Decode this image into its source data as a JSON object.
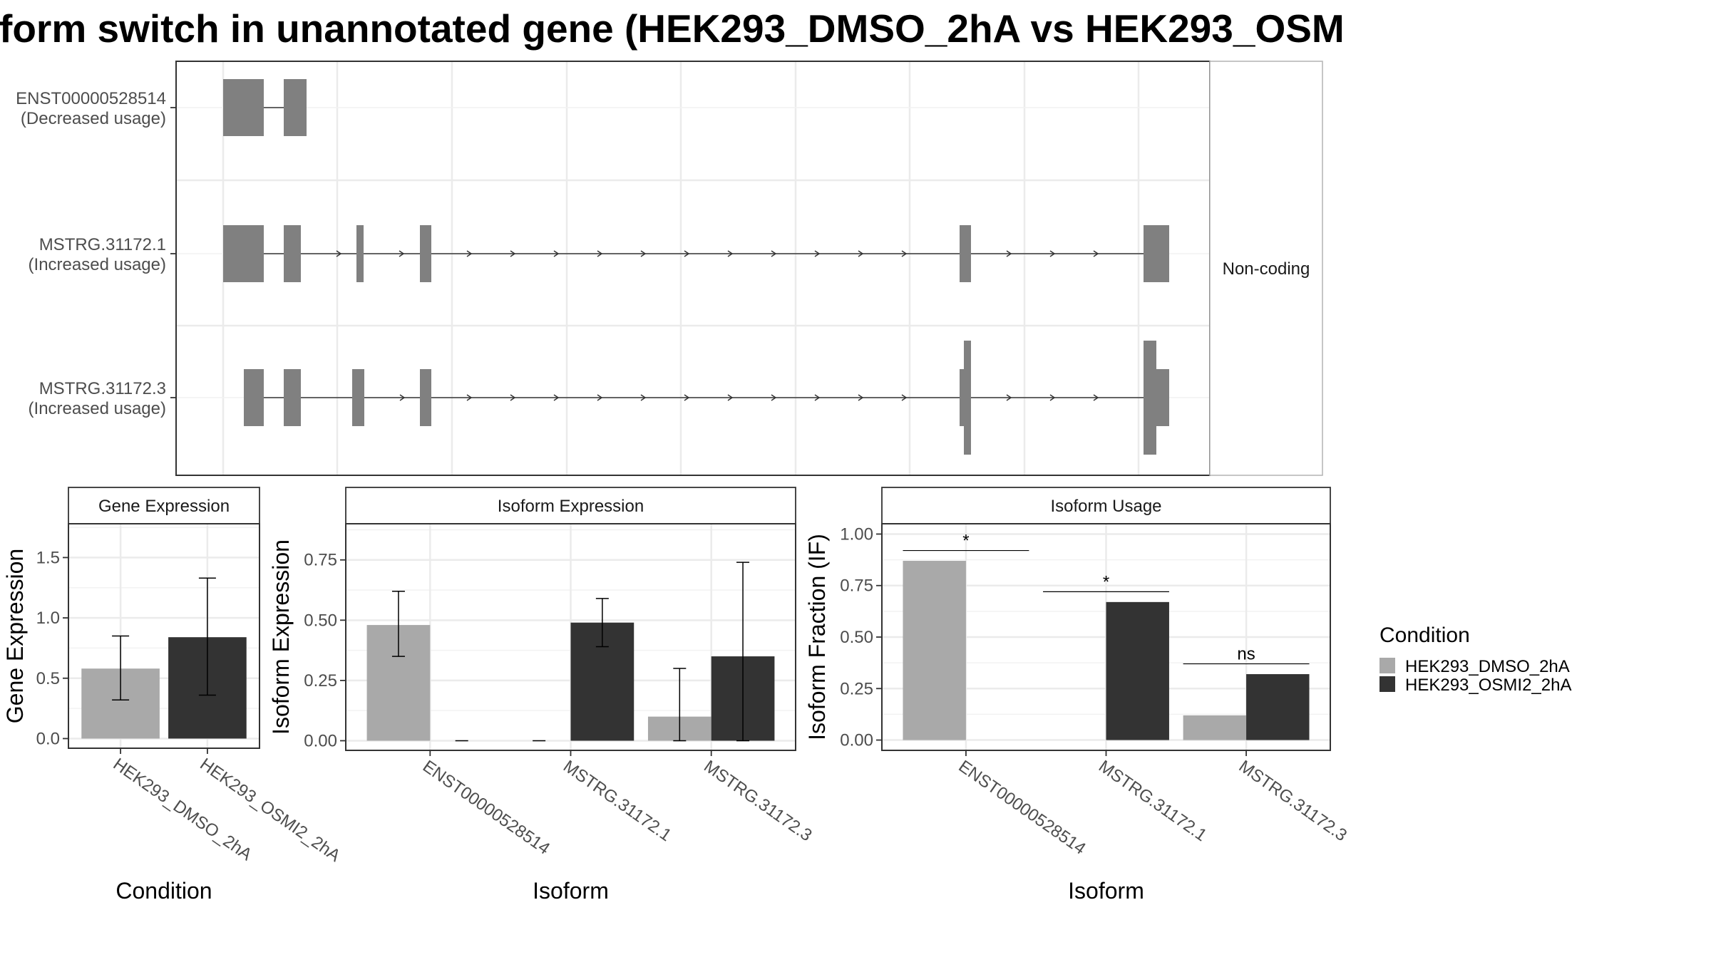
{
  "title": "form switch in unannotated gene (HEK293_DMSO_2hA vs HEK293_OSM",
  "colors": {
    "dmso": "#a9a9a9",
    "osmi": "#333333",
    "exon": "#808080"
  },
  "chart_data": [
    {
      "type": "transcript-structure",
      "transcripts": [
        {
          "id": "ENST00000528514",
          "label": "ENST00000528514",
          "sublabel": "(Decreased usage)"
        },
        {
          "id": "MSTRG.31172.1",
          "label": "MSTRG.31172.1",
          "sublabel": "(Increased usage)"
        },
        {
          "id": "MSTRG.31172.3",
          "label": "MSTRG.31172.3",
          "sublabel": "(Increased usage)"
        }
      ],
      "facet_label": "Non-coding"
    },
    {
      "type": "bar",
      "strip": "Gene Expression",
      "xlabel": "Condition",
      "ylabel": "Gene Expression",
      "ylim": [
        -0.08,
        1.78
      ],
      "yticks": [
        "0.0",
        "0.5",
        "1.0",
        "1.5"
      ],
      "categories": [
        "HEK293_DMSO_2hA",
        "HEK293_OSMI2_2hA"
      ],
      "values": [
        0.58,
        0.84
      ],
      "err_low": [
        0.32,
        0.36
      ],
      "err_high": [
        0.85,
        1.33
      ]
    },
    {
      "type": "bar",
      "strip": "Isoform Expression",
      "xlabel": "Isoform",
      "ylabel": "Isoform Expression",
      "ylim": [
        -0.04,
        0.9
      ],
      "yticks": [
        "0.00",
        "0.25",
        "0.50",
        "0.75"
      ],
      "categories": [
        "ENST00000528514",
        "MSTRG.31172.1",
        "MSTRG.31172.3"
      ],
      "series": [
        {
          "name": "HEK293_DMSO_2hA",
          "values": [
            0.48,
            0,
            0.1
          ],
          "err_low": [
            0.35,
            0,
            0
          ],
          "err_high": [
            0.62,
            0,
            0.3
          ]
        },
        {
          "name": "HEK293_OSMI2_2hA",
          "values": [
            0,
            0.49,
            0.35
          ],
          "err_low": [
            0,
            0.39,
            0
          ],
          "err_high": [
            0,
            0.59,
            0.74
          ]
        }
      ]
    },
    {
      "type": "bar",
      "strip": "Isoform Usage",
      "xlabel": "Isoform",
      "ylabel": "Isoform Fraction (IF)",
      "ylim": [
        -0.05,
        1.05
      ],
      "yticks": [
        "0.00",
        "0.25",
        "0.50",
        "0.75",
        "1.00"
      ],
      "categories": [
        "ENST00000528514",
        "MSTRG.31172.1",
        "MSTRG.31172.3"
      ],
      "series": [
        {
          "name": "HEK293_DMSO_2hA",
          "values": [
            0.87,
            0,
            0.12
          ]
        },
        {
          "name": "HEK293_OSMI2_2hA",
          "values": [
            0,
            0.67,
            0.32
          ]
        }
      ],
      "significance": [
        "*",
        "*",
        "ns"
      ]
    }
  ],
  "legend": {
    "title": "Condition",
    "items": [
      {
        "label": "HEK293_DMSO_2hA",
        "color": "#a9a9a9"
      },
      {
        "label": "HEK293_OSMI2_2hA",
        "color": "#333333"
      }
    ]
  }
}
